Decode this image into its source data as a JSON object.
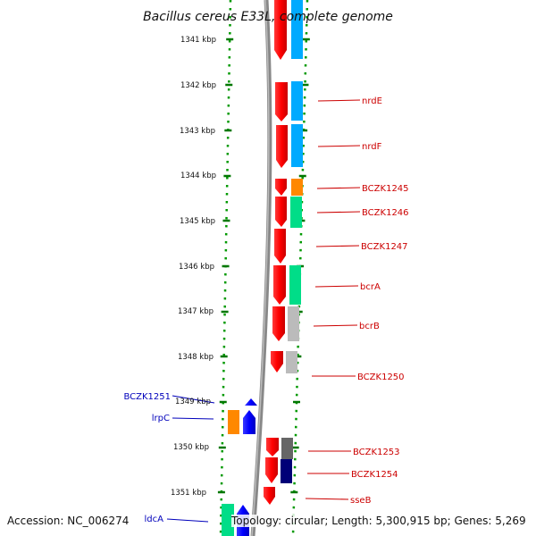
{
  "title": "Bacillus cereus E33L, complete genome",
  "accession": "Accession: NC_006274",
  "topology": "Topology: circular; Length: 5,300,915 bp; Genes: 5,269",
  "ticks": [
    "1341 kbp",
    "1342 kbp",
    "1343 kbp",
    "1344 kbp",
    "1345 kbp",
    "1346 kbp",
    "1347 kbp",
    "1348 kbp",
    "1349 kbp",
    "1350 kbp",
    "1351 kbp"
  ],
  "labels_right": [
    "nrdE",
    "nrdF",
    "BCZK1245",
    "BCZK1246",
    "BCZK1247",
    "bcrA",
    "bcrB",
    "BCZK1250",
    "BCZK1253",
    "BCZK1254",
    "sseB"
  ],
  "labels_left": [
    "BCZK1251",
    "lrpC",
    "ldcA"
  ],
  "colors": {
    "cds_forward": "#ff0000",
    "cds_reverse": "#0000ff",
    "cog_info_storage": "#00aaff",
    "cog_orange": "#ff8800",
    "cog_green": "#00dd88",
    "cog_gray": "#bbbbbb",
    "cog_darkgray": "#666666",
    "cog_navy": "#000077",
    "tick_green": "#007700",
    "backbone": "#888888"
  }
}
